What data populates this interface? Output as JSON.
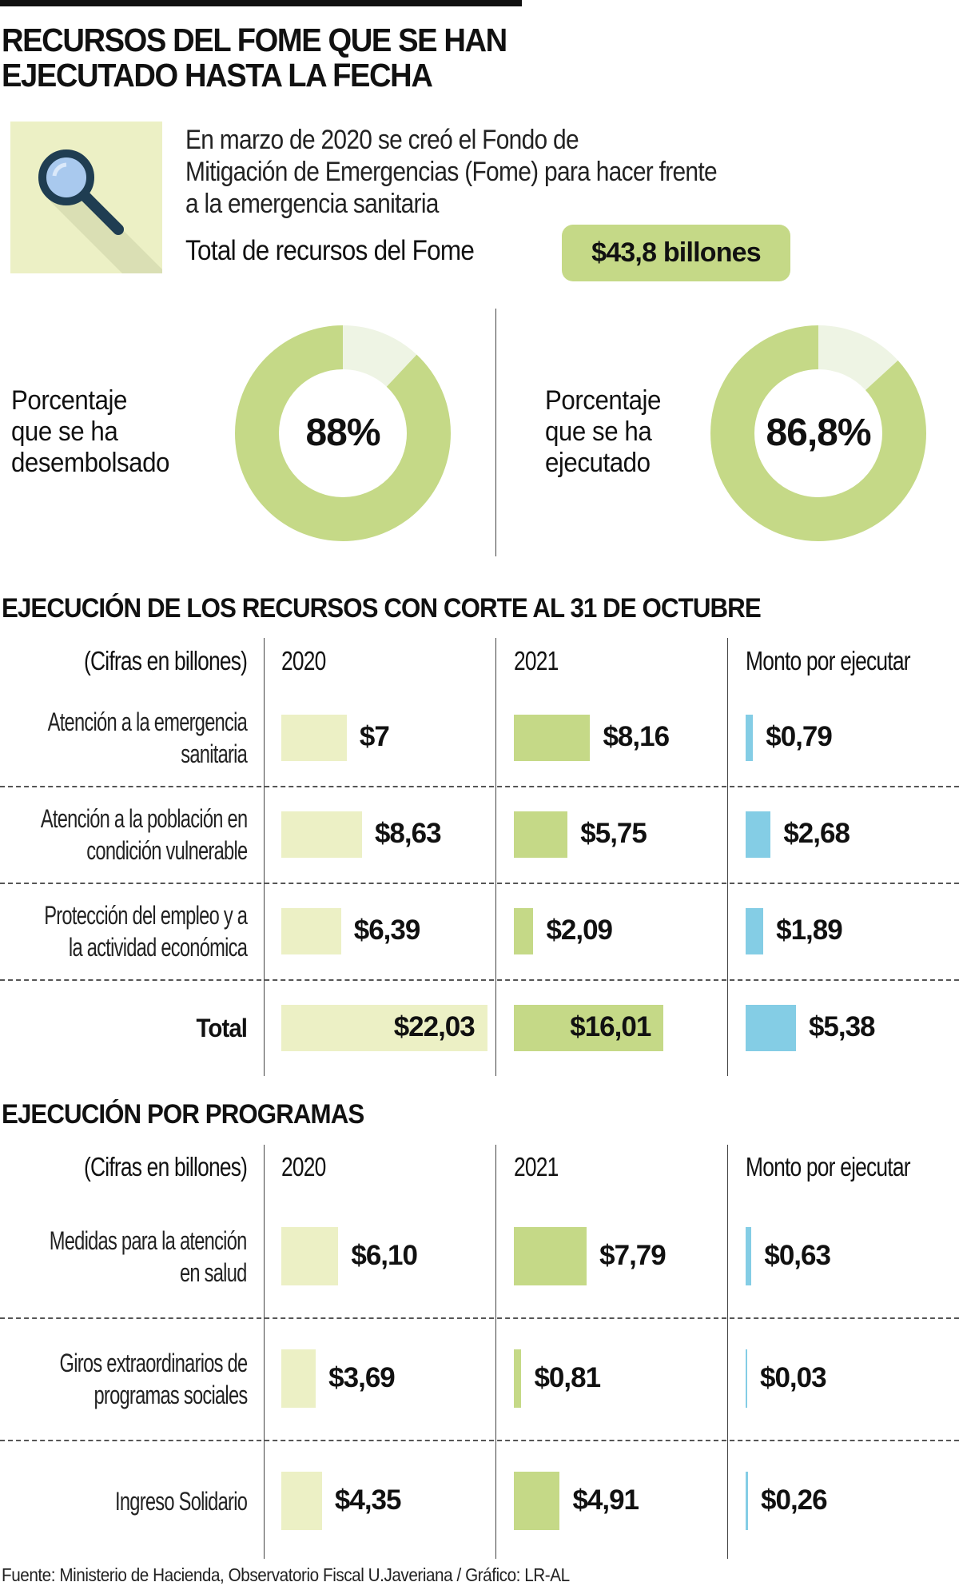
{
  "title": [
    "RECURSOS DEL FOME QUE SE HAN",
    "EJECUTADO HASTA LA FECHA"
  ],
  "intro": [
    "En marzo de 2020 se creó el Fondo de",
    "Mitigación de Emergencias (Fome) para hacer frente",
    "a la emergencia sanitaria"
  ],
  "total_label": "Total de recursos del Fome",
  "total_value": "$43,8 billones",
  "colors": {
    "light_green": "#ecf0c5",
    "green": "#c5d987",
    "blue": "#84cde5",
    "donut_rest": "#eef4e4",
    "icon_dark": "#1f3d52",
    "icon_lens": "#a9c9ee"
  },
  "donuts": [
    {
      "label": [
        "Porcentaje",
        "que se ha",
        "desembolsado"
      ],
      "value_text": "88%",
      "percent": 88
    },
    {
      "label": [
        "Porcentaje",
        "que se ha",
        "ejecutado"
      ],
      "value_text": "86,8%",
      "percent": 86.8
    }
  ],
  "chart_data": [
    {
      "type": "table",
      "title": "EJECUCIÓN DE LOS RECURSOS CON CORTE AL 31 DE OCTUBRE",
      "unit_note": "(Cifras en billones)",
      "columns": [
        "2020",
        "2021",
        "Monto por ejecutar"
      ],
      "rows": [
        {
          "label": [
            "Atención a la emergencia",
            "sanitaria"
          ],
          "values": [
            7,
            8.16,
            0.79
          ],
          "labels": [
            "$7",
            "$8,16",
            "$0,79"
          ]
        },
        {
          "label": [
            "Atención a la población en",
            "condición vulnerable"
          ],
          "values": [
            8.63,
            5.75,
            2.68
          ],
          "labels": [
            "$8,63",
            "$5,75",
            "$2,68"
          ]
        },
        {
          "label": [
            "Protección del empleo y a",
            "la actividad económica"
          ],
          "values": [
            6.39,
            2.09,
            1.89
          ],
          "labels": [
            "$6,39",
            "$2,09",
            "$1,89"
          ]
        },
        {
          "label": [
            "Total"
          ],
          "values": [
            22.03,
            16.01,
            5.38
          ],
          "labels": [
            "$22,03",
            "$16,01",
            "$5,38"
          ],
          "total": true
        }
      ]
    },
    {
      "type": "table",
      "title": "EJECUCIÓN POR PROGRAMAS",
      "unit_note": "(Cifras en billones)",
      "columns": [
        "2020",
        "2021",
        "Monto por ejecutar"
      ],
      "rows": [
        {
          "label": [
            "Medidas para la atención",
            "en salud"
          ],
          "values": [
            6.1,
            7.79,
            0.63
          ],
          "labels": [
            "$6,10",
            "$7,79",
            "$0,63"
          ]
        },
        {
          "label": [
            "Giros extraordinarios de",
            "programas sociales"
          ],
          "values": [
            3.69,
            0.81,
            0.03
          ],
          "labels": [
            "$3,69",
            "$0,81",
            "$0,03"
          ]
        },
        {
          "label": [
            "Ingreso Solidario"
          ],
          "values": [
            4.35,
            4.91,
            0.26
          ],
          "labels": [
            "$4,35",
            "$4,91",
            "$0,26"
          ]
        }
      ]
    }
  ],
  "footer": "Fuente: Ministerio de Hacienda, Observatorio Fiscal U.Javeriana / Gráfico: LR-AL"
}
